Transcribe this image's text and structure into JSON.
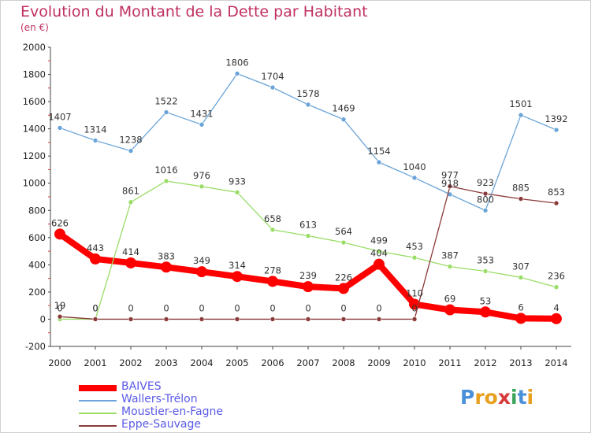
{
  "title": "Evolution du Montant de la Dette par Habitant",
  "subtitle": "(en €)",
  "logo": {
    "text": "Proxiti",
    "letters": [
      {
        "ch": "P",
        "color": "#4a90d9"
      },
      {
        "ch": "r",
        "color": "#e8a020"
      },
      {
        "ch": "o",
        "color": "#e8a020"
      },
      {
        "ch": "x",
        "color": "#d63a3a"
      },
      {
        "ch": "i",
        "color": "#3aa55a"
      },
      {
        "ch": "t",
        "color": "#4a90d9"
      },
      {
        "ch": "i",
        "color": "#e8a020"
      }
    ]
  },
  "chart_data": {
    "type": "line",
    "title": "Evolution du Montant de la Dette par Habitant",
    "subtitle": "(en €)",
    "xlabel": "",
    "ylabel": "",
    "x": [
      "2000",
      "2001",
      "2002",
      "2003",
      "2004",
      "2005",
      "2006",
      "2007",
      "2008",
      "2009",
      "2010",
      "2011",
      "2012",
      "2013",
      "2014"
    ],
    "ylim": [
      -200,
      2000
    ],
    "yticks": [
      -200,
      0,
      200,
      400,
      600,
      800,
      1000,
      1200,
      1400,
      1600,
      1800,
      2000
    ],
    "grid": false,
    "legend_position": "bottom-left",
    "series": [
      {
        "name": "BAIVES",
        "color": "#ff0000",
        "values": [
          626,
          443,
          414,
          383,
          349,
          314,
          278,
          239,
          226,
          404,
          110,
          69,
          53,
          6,
          4
        ],
        "labels": [
          "626",
          "443",
          "414",
          "383",
          "349",
          "314",
          "278",
          "239",
          "226",
          "404",
          "110",
          "69",
          "53",
          "6",
          "4"
        ]
      },
      {
        "name": "Wallers-Trélon",
        "color": "#6aa4d8",
        "values": [
          1407,
          1314,
          1238,
          1522,
          1431,
          1806,
          1704,
          1578,
          1469,
          1154,
          1040,
          918,
          800,
          1501,
          1392
        ],
        "labels": [
          "1407",
          "1314",
          "1238",
          "1522",
          "1431",
          "1806",
          "1704",
          "1578",
          "1469",
          "1154",
          "1040",
          "918",
          "800",
          "1501",
          "1392"
        ]
      },
      {
        "name": "Moustier-en-Fagne",
        "color": "#99dd66",
        "values": [
          0,
          0,
          861,
          1016,
          976,
          933,
          658,
          613,
          564,
          499,
          453,
          387,
          353,
          307,
          236
        ],
        "labels": [
          "0",
          "0",
          "861",
          "1016",
          "976",
          "933",
          "658",
          "613",
          "564",
          "499",
          "453",
          "387",
          "353",
          "307",
          "236"
        ]
      },
      {
        "name": "Eppe-Sauvage",
        "color": "#8b3a3a",
        "values": [
          19,
          0,
          0,
          0,
          0,
          0,
          0,
          0,
          0,
          0,
          0,
          977,
          923,
          885,
          853
        ],
        "labels": [
          "19",
          "0",
          "0",
          "0",
          "0",
          "0",
          "0",
          "0",
          "0",
          "0",
          "0",
          "977",
          "923",
          "885",
          "853"
        ]
      }
    ]
  }
}
